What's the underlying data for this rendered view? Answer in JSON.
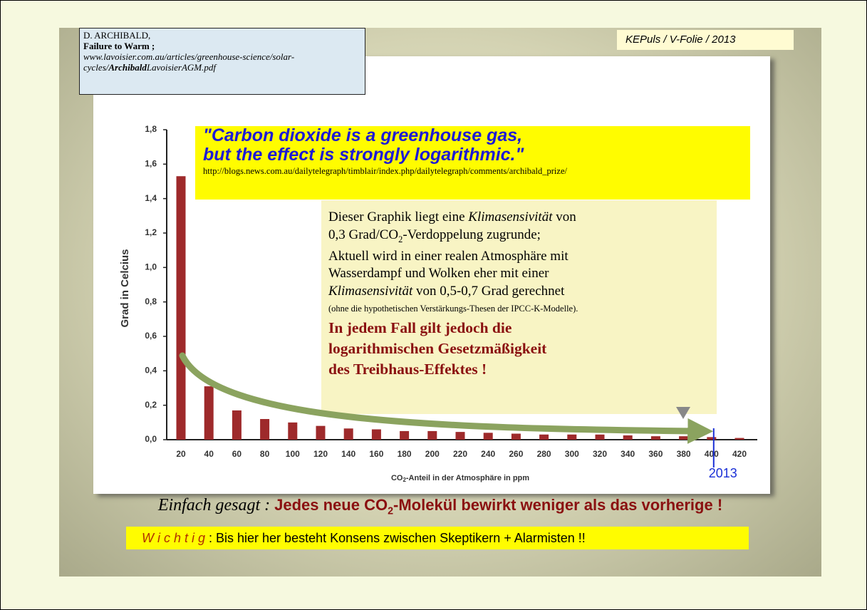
{
  "source": {
    "author": "D. ARCHIBALD,",
    "title": "Failure to Warm ;",
    "url_start": "www.lavoisier.com.au/articles/greenhouse-science/solar-cycles/",
    "url_bold": "Archibald",
    "url_end": "LavoisierAGM.pdf"
  },
  "header": "KEPuls / V-Folie / 2013",
  "quote": {
    "lines": [
      "\"Carbon dioxide is a greenhouse gas,",
      "but the effect is strongly logarithmic.\""
    ],
    "url": "http://blogs.news.com.au/dailytelegraph/timblair/index.php/dailytelegraph/comments/archibald_prize/"
  },
  "note": {
    "line1_start": "Dieser Graphik liegt eine ",
    "line1_italic": "Klimasensivität",
    "line1_end": " von",
    "line2_start": "0,3 Grad/CO",
    "line2_sub": "2",
    "line2_end": "-Verdoppelung zugrunde;",
    "line3": "Aktuell wird in einer realen Atmosphäre mit",
    "line4": "Wasserdampf und Wolken eher mit einer",
    "line5_italic": "Klimasensivität",
    "line5_end": " von 0,5-0,7 Grad gerechnet",
    "small": "(ohne die hypothetischen Verstärkungs-Thesen der IPCC-K-Modelle).",
    "bold_lines": [
      "In jedem Fall gilt jedoch die",
      "logarithmischen Gesetzmäßigkeit",
      "des Treibhaus-Effektes !"
    ]
  },
  "chart_data": {
    "type": "bar",
    "y_label": "Grad in Celcius",
    "x_label": {
      "start": "CO",
      "sub": "2",
      "end": "-Anteil in der Atmosphäre in ppm"
    },
    "categories": [
      "20",
      "40",
      "60",
      "80",
      "100",
      "120",
      "140",
      "160",
      "180",
      "200",
      "220",
      "240",
      "260",
      "280",
      "300",
      "320",
      "340",
      "360",
      "380",
      "400",
      "420"
    ],
    "values": [
      1.53,
      0.31,
      0.17,
      0.12,
      0.1,
      0.08,
      0.065,
      0.06,
      0.05,
      0.05,
      0.045,
      0.04,
      0.035,
      0.03,
      0.03,
      0.03,
      0.025,
      0.02,
      0.02,
      0.015,
      0.01
    ],
    "color": "#9e2a2b",
    "ylim": [
      0,
      1.8
    ],
    "yticks": [
      {
        "value": 0,
        "label": "0,0"
      },
      {
        "value": 0.2,
        "label": "0,2"
      },
      {
        "value": 0.4,
        "label": "0,4"
      },
      {
        "value": 0.6,
        "label": "0,6"
      },
      {
        "value": 0.8,
        "label": "0,8"
      },
      {
        "value": 1,
        "label": "1,0"
      },
      {
        "value": 1.2,
        "label": "1,2"
      },
      {
        "value": 1.4,
        "label": "1,4"
      },
      {
        "value": 1.6,
        "label": "1,6"
      },
      {
        "value": 1.8,
        "label": "1,8"
      }
    ],
    "annotation": {
      "text": "2013",
      "x": "400"
    }
  },
  "summary": {
    "italic": "Einfach gesagt",
    "colon": " : ",
    "bold_start": "Jedes neue CO",
    "bold_sub": "2",
    "bold_end": "-Molekül bewirkt weniger als das vorherige !",
    "important": "W i c h t i g",
    "important_rest": " :  Bis hier her besteht Konsens zwischen Skeptikern + Alarmisten !!"
  }
}
